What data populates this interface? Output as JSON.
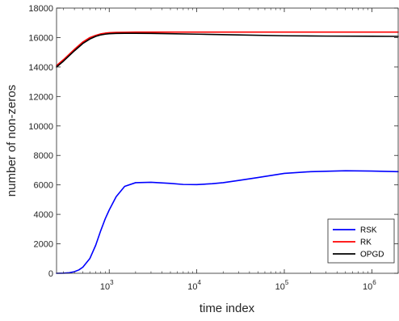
{
  "chart_data": {
    "type": "line",
    "title": "",
    "xlabel": "time index",
    "ylabel": "number of non-zeros",
    "xscale": "log",
    "xlim": [
      250,
      2000000
    ],
    "ylim": [
      0,
      18000
    ],
    "grid": false,
    "legend_position": "bottom-right",
    "x_ticks": [
      {
        "value": 1000,
        "base": "10",
        "exp": "3"
      },
      {
        "value": 10000,
        "base": "10",
        "exp": "4"
      },
      {
        "value": 100000,
        "base": "10",
        "exp": "5"
      },
      {
        "value": 1000000,
        "base": "10",
        "exp": "6"
      }
    ],
    "y_ticks": [
      {
        "value": 0,
        "label": "0"
      },
      {
        "value": 2000,
        "label": "2000"
      },
      {
        "value": 4000,
        "label": "4000"
      },
      {
        "value": 6000,
        "label": "6000"
      },
      {
        "value": 8000,
        "label": "8000"
      },
      {
        "value": 10000,
        "label": "10000"
      },
      {
        "value": 12000,
        "label": "12000"
      },
      {
        "value": 14000,
        "label": "14000"
      },
      {
        "value": 16000,
        "label": "16000"
      },
      {
        "value": 18000,
        "label": "18000"
      }
    ],
    "series": [
      {
        "name": "RSK",
        "color": "#0000ff",
        "x": [
          250,
          300,
          350,
          400,
          450,
          500,
          600,
          700,
          800,
          900,
          1000,
          1200,
          1500,
          2000,
          3000,
          5000,
          7000,
          10000,
          15000,
          20000,
          30000,
          50000,
          100000,
          200000,
          500000,
          1000000,
          2000000
        ],
        "y": [
          0,
          10,
          40,
          110,
          230,
          420,
          1000,
          1900,
          2900,
          3700,
          4300,
          5200,
          5900,
          6150,
          6180,
          6100,
          6030,
          6020,
          6080,
          6150,
          6300,
          6500,
          6780,
          6900,
          6960,
          6940,
          6900
        ]
      },
      {
        "name": "RK",
        "color": "#ff0000",
        "x": [
          250,
          300,
          400,
          500,
          600,
          700,
          800,
          900,
          1000,
          1200,
          1500,
          2000,
          5000,
          10000,
          100000,
          1000000,
          2000000
        ],
        "y": [
          14100,
          14500,
          15200,
          15700,
          16000,
          16150,
          16250,
          16300,
          16330,
          16350,
          16360,
          16370,
          16370,
          16370,
          16370,
          16370,
          16370
        ]
      },
      {
        "name": "OPGD",
        "color": "#000000",
        "x": [
          250,
          300,
          400,
          500,
          600,
          700,
          800,
          900,
          1000,
          1200,
          1500,
          2000,
          3000,
          5000,
          10000,
          30000,
          100000,
          300000,
          1000000,
          2000000
        ],
        "y": [
          14000,
          14400,
          15100,
          15600,
          15900,
          16080,
          16180,
          16230,
          16260,
          16280,
          16290,
          16290,
          16280,
          16260,
          16230,
          16180,
          16120,
          16100,
          16090,
          16080
        ]
      }
    ]
  }
}
